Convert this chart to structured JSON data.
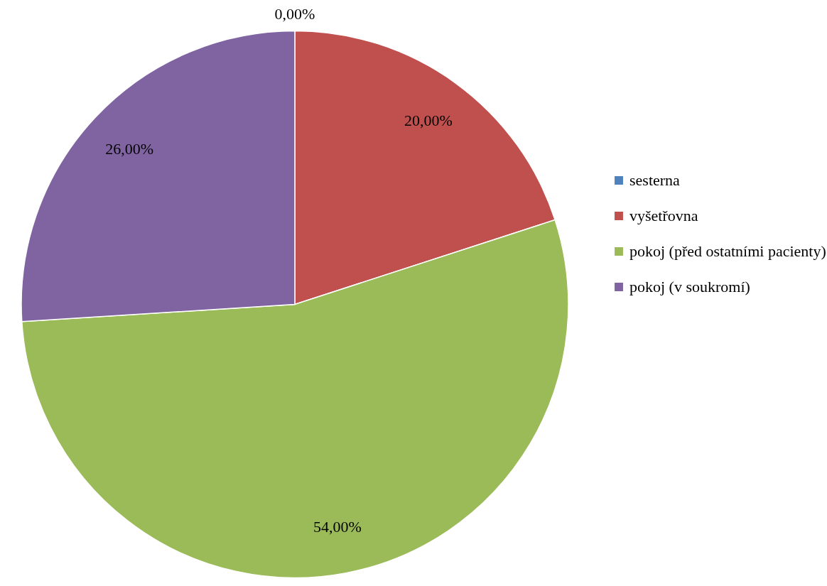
{
  "chart_data": {
    "type": "pie",
    "categories": [
      "sesterna",
      "vyšetřovna",
      "pokoj (před ostatními pacienty)",
      "pokoj (v soukromí)"
    ],
    "values": [
      0,
      20,
      54,
      26
    ],
    "colors": [
      "#4f81bd",
      "#c0504d",
      "#9bbb59",
      "#8064a2"
    ],
    "value_labels": [
      "0,00%",
      "20,00%",
      "54,00%",
      "26,00%"
    ],
    "legend": "right"
  }
}
